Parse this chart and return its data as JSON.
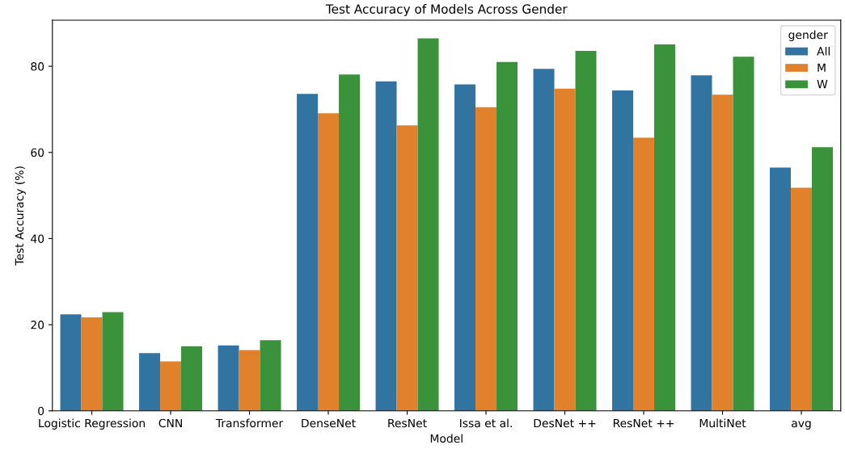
{
  "chart_data": {
    "type": "bar",
    "title": "Test Accuracy of Models Across Gender",
    "xlabel": "Model",
    "ylabel": "Test Accuracy (%)",
    "legend_title": "gender",
    "legend": "top right",
    "grid": false,
    "categories": [
      "Logistic Regression",
      "CNN",
      "Transformer",
      "DenseNet",
      "ResNet",
      "Issa et al.",
      "DesNet ++",
      "ResNet ++",
      "MultiNet",
      "avg"
    ],
    "series": [
      {
        "name": "All",
        "color": "#3274a1",
        "values": [
          22.4,
          13.4,
          15.2,
          73.6,
          76.5,
          75.8,
          79.4,
          74.4,
          77.9,
          56.5
        ]
      },
      {
        "name": "M",
        "color": "#e1812c",
        "values": [
          21.7,
          11.5,
          14.1,
          69.1,
          66.3,
          70.5,
          74.8,
          63.4,
          73.4,
          51.8
        ]
      },
      {
        "name": "W",
        "color": "#3a923a",
        "values": [
          22.9,
          15.0,
          16.4,
          78.1,
          86.5,
          81.0,
          83.6,
          85.1,
          82.2,
          61.2
        ]
      }
    ],
    "ylim": [
      0,
      90.7
    ],
    "yticks": [
      0,
      20,
      40,
      60,
      80
    ]
  }
}
